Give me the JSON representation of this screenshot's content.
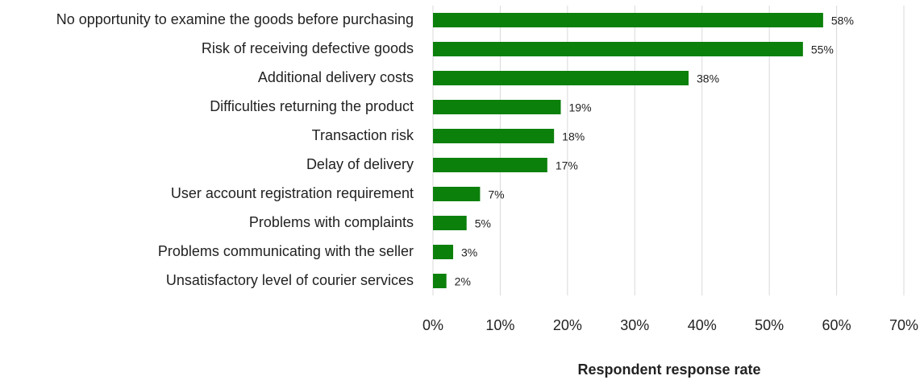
{
  "chart_data": {
    "type": "bar",
    "orientation": "horizontal",
    "x_label": "Respondent response rate",
    "categories": [
      "No opportunity to examine the goods before purchasing",
      "Risk of receiving defective goods",
      "Additional delivery costs",
      "Difficulties returning the product",
      "Transaction risk",
      "Delay of delivery",
      "User account registration requirement",
      "Problems with complaints",
      "Problems communicating with the seller",
      "Unsatisfactory level of courier services"
    ],
    "values": [
      58,
      55,
      38,
      19,
      18,
      17,
      7,
      5,
      3,
      2
    ],
    "value_labels": [
      "58%",
      "55%",
      "38%",
      "19%",
      "18%",
      "17%",
      "7%",
      "5%",
      "3%",
      "2%"
    ],
    "color": "#0b800b",
    "xlim": [
      0,
      70
    ],
    "xticks": [
      {
        "value": 0,
        "label": "0%"
      },
      {
        "value": 10,
        "label": "10%"
      },
      {
        "value": 20,
        "label": "20%"
      },
      {
        "value": 30,
        "label": "30%"
      },
      {
        "value": 40,
        "label": "40%"
      },
      {
        "value": 50,
        "label": "50%"
      },
      {
        "value": 60,
        "label": "60%"
      },
      {
        "value": 70,
        "label": "70%"
      }
    ],
    "grid": true
  }
}
